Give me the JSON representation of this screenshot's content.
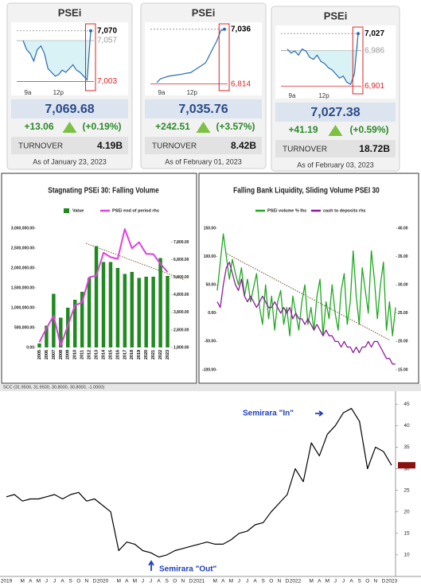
{
  "cards": [
    {
      "title": "PSEi",
      "value": "7,069.68",
      "change": "+13.06",
      "percent": "(+0.19%)",
      "turnover_label": "TURNOVER",
      "turnover": "4.19B",
      "date": "As of January 23, 2023",
      "chart": {
        "type": "line",
        "x_labels": [
          "9a",
          "12p"
        ],
        "ylim": [
          6995,
          7075
        ],
        "yticks": [
          {
            "value": 7070,
            "label": "7,070"
          },
          {
            "value": 7057,
            "label": "7,057"
          },
          {
            "value": 7003,
            "label": "7,003"
          }
        ],
        "color": "#2a6cb0",
        "values": [
          7057,
          7045,
          7040,
          7030,
          7045,
          7050,
          7040,
          7020,
          7015,
          7010,
          7012,
          7018,
          7015,
          7020,
          7025,
          7018,
          7015,
          7010,
          7005,
          7070
        ]
      }
    },
    {
      "title": "PSEi",
      "value": "7,035.76",
      "change": "+242.51",
      "percent": "(+3.57%)",
      "turnover_label": "TURNOVER",
      "turnover": "8.42B",
      "date": "As of February 01, 2023",
      "chart": {
        "type": "line",
        "x_labels": [
          "9a",
          "12p"
        ],
        "ylim": [
          6800,
          7045
        ],
        "yticks": [
          {
            "value": 7036,
            "label": "7,036"
          },
          {
            "value": 6814,
            "label": "6,814"
          }
        ],
        "color": "#2a6cb0",
        "values": [
          6820,
          6835,
          6840,
          6845,
          6848,
          6850,
          6852,
          6855,
          6858,
          6860,
          6870,
          6880,
          6890,
          6900,
          6930,
          6960,
          6990,
          7030,
          7036
        ]
      }
    },
    {
      "title": "PSEi",
      "value": "7,027.38",
      "change": "+41.19",
      "percent": "(+0.59%)",
      "turnover_label": "TURNOVER",
      "turnover": "18.72B",
      "date": "As of February 03, 2023",
      "chart": {
        "type": "line",
        "x_labels": [
          "9a",
          "12p"
        ],
        "ylim": [
          6890,
          7035
        ],
        "yticks": [
          {
            "value": 7027,
            "label": "7,027"
          },
          {
            "value": 6986,
            "label": "6,986"
          },
          {
            "value": 6901,
            "label": "6,901"
          }
        ],
        "color": "#2a6cb0",
        "values": [
          6990,
          6980,
          6985,
          6975,
          6990,
          6985,
          6970,
          6965,
          6975,
          6960,
          6955,
          6945,
          6940,
          6930,
          6920,
          6925,
          6910,
          6905,
          6930,
          7027
        ]
      }
    }
  ],
  "chart_data": [
    {
      "type": "bar",
      "title": "Stagnating PSEi 30: Falling Volume",
      "categories": [
        "2005",
        "2006",
        "2007",
        "2008",
        "2009",
        "2010",
        "2011",
        "2012",
        "2013",
        "2014",
        "2015",
        "2016",
        "2017",
        "2018",
        "2019",
        "2020",
        "2021",
        "2022",
        "2023"
      ],
      "series": [
        {
          "name": "Value",
          "type": "bar",
          "color": "#1f8a1f",
          "values": [
            100000,
            550000,
            1350000,
            750000,
            1000000,
            1200000,
            1400000,
            1750000,
            2550000,
            2150000,
            2150000,
            2000000,
            1850000,
            1900000,
            1750000,
            1780000,
            1780000,
            2250000,
            1800000
          ]
        },
        {
          "name": "PSEi end of period rhs",
          "type": "line",
          "axis": "y2",
          "color": "#e040e0",
          "values": [
            2100,
            2900,
            3600,
            1900,
            3050,
            4200,
            4370,
            5800,
            5900,
            7200,
            6950,
            6850,
            8550,
            7450,
            7800,
            7140,
            7120,
            6570,
            6100
          ]
        }
      ],
      "ylim": [
        0,
        3000000
      ],
      "yticks": [
        {
          "value": 0,
          "label": "0.00"
        },
        {
          "value": 500000,
          "label": "500,000.00"
        },
        {
          "value": 1000000,
          "label": "1,000,000.00"
        },
        {
          "value": 1500000,
          "label": "1,500,000.00"
        },
        {
          "value": 2000000,
          "label": "2,000,000.00"
        },
        {
          "value": 2500000,
          "label": "2,500,000.00"
        },
        {
          "value": 3000000,
          "label": "3,000,000.00"
        }
      ],
      "y2lim": [
        1800,
        8600
      ],
      "y2ticks": [
        {
          "value": 1800,
          "label": "1,800.00"
        },
        {
          "value": 2800,
          "label": "2,800.00"
        },
        {
          "value": 3800,
          "label": "3,800.00"
        },
        {
          "value": 4800,
          "label": "4,800.00"
        },
        {
          "value": 5800,
          "label": "5,800.00"
        },
        {
          "value": 6800,
          "label": "6,800.00"
        },
        {
          "value": 7800,
          "label": "7,800.00"
        }
      ]
    },
    {
      "type": "line",
      "title": "Falling Bank Liquidity, Sliding Volume PSEI 30",
      "series": [
        {
          "name": "PSEi volume % lhs",
          "color": "#1fa81f",
          "values": [
            40,
            90,
            140,
            100,
            60,
            95,
            70,
            50,
            80,
            30,
            60,
            20,
            45,
            70,
            10,
            -20,
            50,
            -10,
            30,
            -30,
            20,
            40,
            -20,
            10,
            -40,
            30,
            0,
            -30,
            20,
            50,
            -20,
            10,
            -30,
            30,
            60,
            -40,
            20,
            -10,
            50,
            0,
            -30,
            40,
            70,
            -20,
            20,
            110,
            30,
            -20,
            80,
            40,
            0,
            110,
            60,
            -10,
            50,
            90,
            -30,
            20,
            -40,
            10
          ]
        },
        {
          "name": "cash to deposits rhs",
          "axis": "y2",
          "color": "#8e1a9e",
          "values": [
            27,
            26,
            30,
            33,
            34,
            32,
            30,
            29,
            31,
            28,
            27,
            28,
            27,
            26,
            27,
            28,
            27,
            26,
            26,
            27,
            26,
            25,
            26,
            25,
            26,
            24,
            25,
            24,
            24,
            23,
            24,
            23,
            22,
            23,
            22,
            21,
            22,
            21,
            21,
            20,
            20,
            19,
            20,
            19,
            19,
            18,
            19,
            18,
            19,
            19,
            20,
            19,
            20,
            20,
            19,
            18,
            17,
            17,
            16,
            16
          ]
        }
      ],
      "ylim": [
        -100,
        150
      ],
      "yticks": [
        {
          "value": 150,
          "label": "150.00"
        },
        {
          "value": 100,
          "label": "100.00"
        },
        {
          "value": 50,
          "label": "50.00"
        },
        {
          "value": 0,
          "label": "0.00"
        },
        {
          "value": -50,
          "label": "-50.00"
        },
        {
          "value": -100,
          "label": "-100.00"
        }
      ],
      "y2lim": [
        15,
        40
      ],
      "y2ticks": [
        {
          "value": 40,
          "label": "40.00"
        },
        {
          "value": 35,
          "label": "35.00"
        },
        {
          "value": 30,
          "label": "30.00"
        },
        {
          "value": 25,
          "label": "25.00"
        },
        {
          "value": 20,
          "label": "20.00"
        },
        {
          "value": 15,
          "label": "15.00"
        }
      ]
    },
    {
      "type": "line",
      "title": "SCC (31.9500, 31.9500, 30.8000, 30.8000, -1.0000)",
      "categories": [
        "2019",
        null,
        "M",
        "A",
        "M",
        "J",
        "J",
        "A",
        "S",
        "O",
        "N",
        "D",
        "2020",
        null,
        "M",
        "A",
        "M",
        "J",
        "J",
        "A",
        "S",
        "O",
        "N",
        "D",
        "2021",
        null,
        "M",
        "A",
        "M",
        "J",
        "J",
        "A",
        "S",
        "O",
        "N",
        "D",
        "2022",
        null,
        "M",
        "A",
        "M",
        "J",
        "J",
        "A",
        "S",
        "O",
        "N",
        "D",
        "2023"
      ],
      "series": [
        {
          "color": "#000000",
          "values": [
            23.5,
            24,
            22.5,
            23,
            23,
            23.5,
            24,
            23,
            24,
            24.5,
            22.5,
            23,
            21.5,
            20,
            11,
            13,
            12.5,
            11,
            10.5,
            9.5,
            10,
            11,
            11.5,
            12,
            12.5,
            13,
            12.5,
            12.5,
            13.5,
            15,
            15.5,
            17,
            17.5,
            20,
            22,
            24,
            30,
            27,
            36,
            33,
            38,
            40,
            43,
            44,
            41,
            30,
            35,
            34,
            30.8
          ]
        }
      ],
      "ylim": [
        5,
        48
      ],
      "yticks": [
        10,
        15,
        20,
        25,
        30,
        35,
        40,
        45
      ],
      "annotations": [
        "Semirara \"In\"",
        "Semirara \"Out\""
      ]
    }
  ]
}
